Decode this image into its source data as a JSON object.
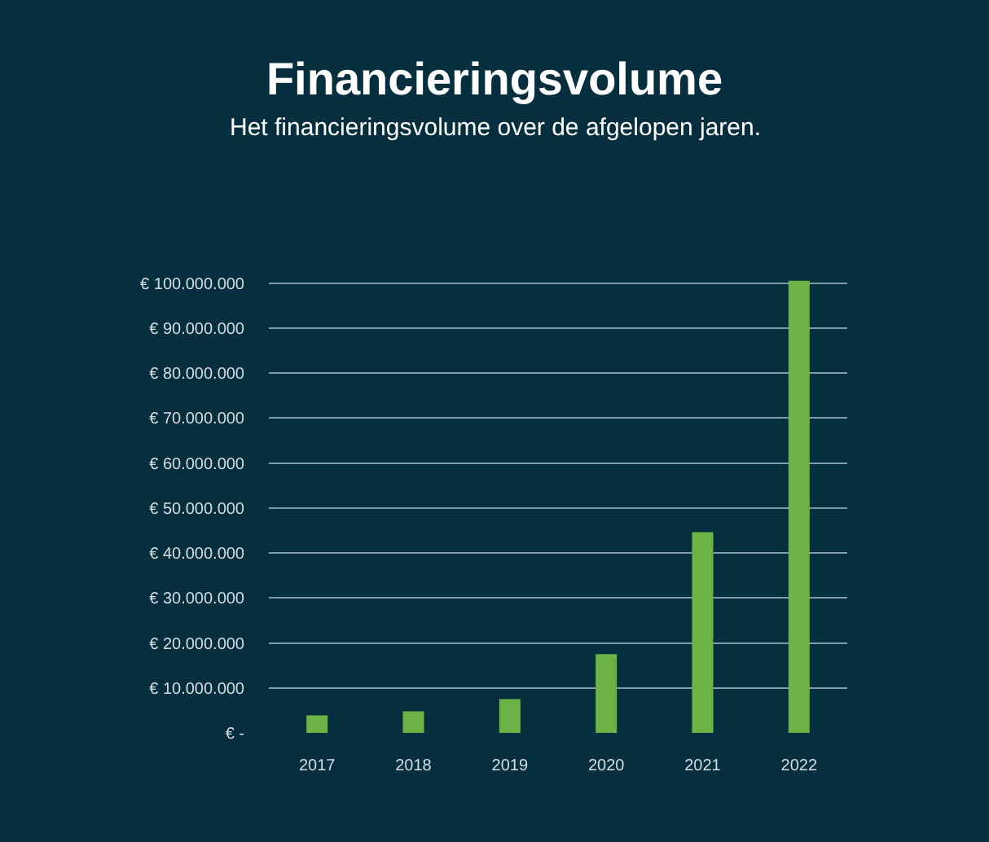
{
  "chart_data": {
    "type": "bar",
    "title": "Financieringsvolume",
    "subtitle": "Het financieringsvolume over de afgelopen jaren.",
    "categories": [
      "2017",
      "2018",
      "2019",
      "2020",
      "2021",
      "2022"
    ],
    "values": [
      3900000,
      4800000,
      7500000,
      17500000,
      44600000,
      100500000
    ],
    "color": "#6ab344",
    "ylim": [
      0,
      101000000
    ],
    "yticks": [
      {
        "value": 0,
        "label": "€ -"
      },
      {
        "value": 10000000,
        "label": "€ 10.000.000"
      },
      {
        "value": 20000000,
        "label": "€ 20.000.000"
      },
      {
        "value": 30000000,
        "label": "€ 30.000.000"
      },
      {
        "value": 40000000,
        "label": "€ 40.000.000"
      },
      {
        "value": 50000000,
        "label": "€ 50.000.000"
      },
      {
        "value": 60000000,
        "label": "€ 60.000.000"
      },
      {
        "value": 70000000,
        "label": "€ 70.000.000"
      },
      {
        "value": 80000000,
        "label": "€ 80.000.000"
      },
      {
        "value": 90000000,
        "label": "€ 90.000.000"
      },
      {
        "value": 100000000,
        "label": "€ 100.000.000"
      }
    ],
    "grid": "y"
  }
}
